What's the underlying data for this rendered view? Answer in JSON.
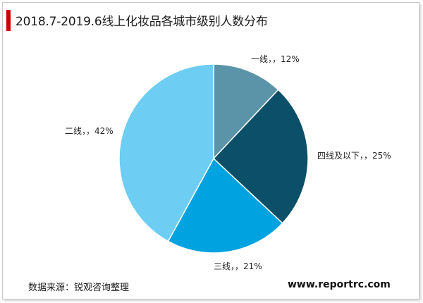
{
  "title": "2018.7-2019.6线上化妆品各城市级别人数分布",
  "source": "数据来源：锐观咨询整理",
  "website": "www.reportrc.com",
  "colors": {
    "title_accent": "#cc0000"
  },
  "chart_data": {
    "type": "pie",
    "title": "2018.7-2019.6线上化妆品各城市级别人数分布",
    "slices": [
      {
        "label": "一线，，12%",
        "category": "一线",
        "value": 12,
        "color": "#5b94a9"
      },
      {
        "label": "四线及以下，，25%",
        "category": "四线及以下",
        "value": 25,
        "color": "#0b4f69"
      },
      {
        "label": "三线，，21%",
        "category": "三线",
        "value": 21,
        "color": "#00a3e0"
      },
      {
        "label": "二线，，42%",
        "category": "二线",
        "value": 42,
        "color": "#6dcdf3"
      }
    ],
    "start_angle": "12 o'clock",
    "direction": "clockwise",
    "legend": "none",
    "labels": "outside"
  }
}
